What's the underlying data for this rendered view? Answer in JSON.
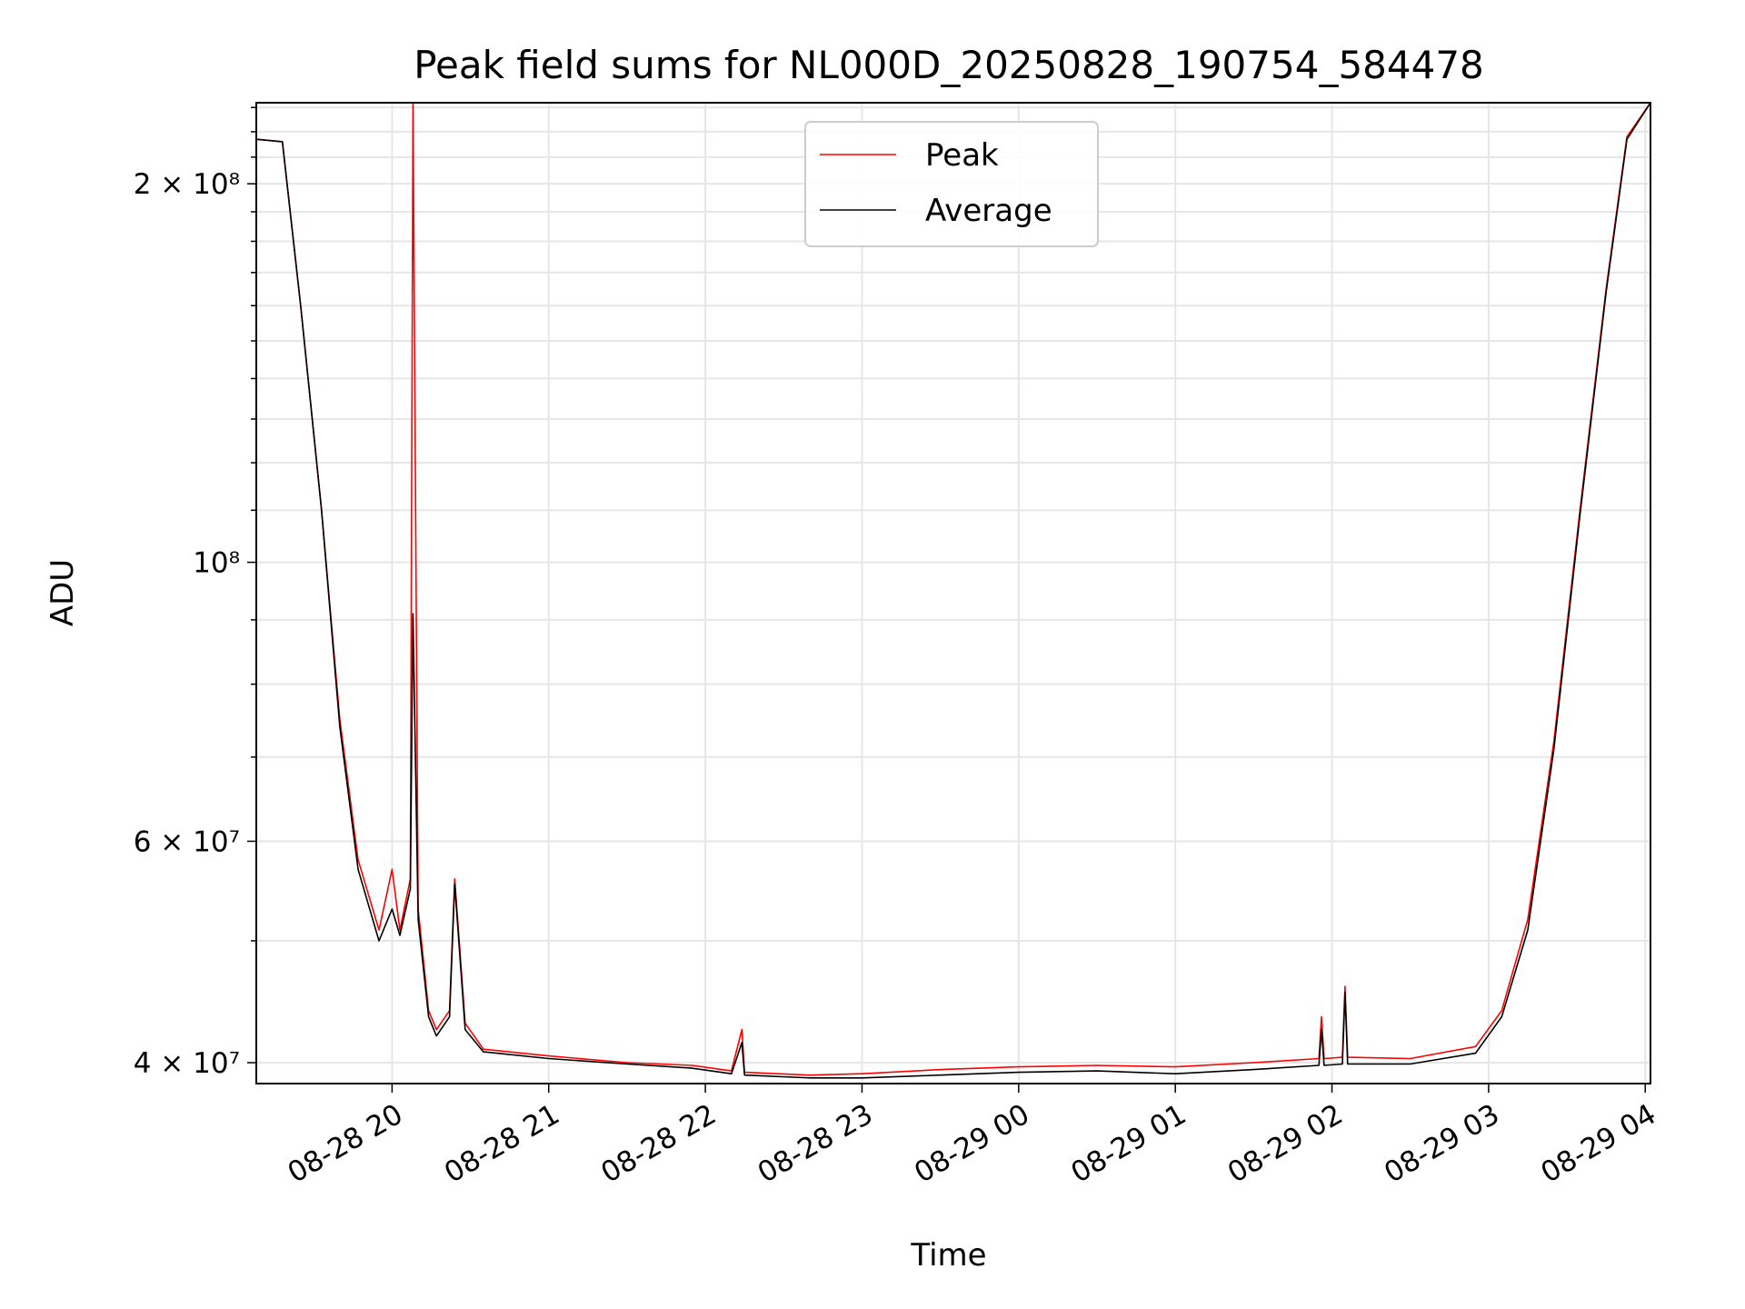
{
  "chart_data": {
    "type": "line",
    "title": "Peak field sums for NL000D_20250828_190754_584478",
    "xlabel": "Time",
    "ylabel": "ADU",
    "y_scale": "log",
    "ylim": [
      38500000,
      232000000
    ],
    "xlim": [
      "2025-08-28 19:08",
      "2025-08-29 04:02"
    ],
    "grid": true,
    "legend_position": "top-center",
    "x_ticks": [
      {
        "label": "08-28 20",
        "x": "2025-08-28 20:00"
      },
      {
        "label": "08-28 21",
        "x": "2025-08-28 21:00"
      },
      {
        "label": "08-28 22",
        "x": "2025-08-28 22:00"
      },
      {
        "label": "08-28 23",
        "x": "2025-08-28 23:00"
      },
      {
        "label": "08-29 00",
        "x": "2025-08-29 00:00"
      },
      {
        "label": "08-29 01",
        "x": "2025-08-29 01:00"
      },
      {
        "label": "08-29 02",
        "x": "2025-08-29 02:00"
      },
      {
        "label": "08-29 03",
        "x": "2025-08-29 03:00"
      },
      {
        "label": "08-29 04",
        "x": "2025-08-29 04:00"
      }
    ],
    "y_ticks": [
      {
        "label": "2 × 10⁸",
        "value": 200000000
      },
      {
        "label": "10⁸",
        "value": 100000000
      },
      {
        "label": "6 × 10⁷",
        "value": 60000000
      },
      {
        "label": "4 × 10⁷",
        "value": 40000000
      }
    ],
    "series": [
      {
        "name": "Peak",
        "color": "#ff0000",
        "points": [
          {
            "x": "2025-08-28 19:08",
            "y": 217000000
          },
          {
            "x": "2025-08-28 19:18",
            "y": 216000000
          },
          {
            "x": "2025-08-28 19:25",
            "y": 160000000
          },
          {
            "x": "2025-08-28 19:33",
            "y": 110000000
          },
          {
            "x": "2025-08-28 19:40",
            "y": 75000000
          },
          {
            "x": "2025-08-28 19:47",
            "y": 58000000
          },
          {
            "x": "2025-08-28 19:55",
            "y": 51000000
          },
          {
            "x": "2025-08-28 20:00",
            "y": 57000000
          },
          {
            "x": "2025-08-28 20:03",
            "y": 51000000
          },
          {
            "x": "2025-08-28 20:07",
            "y": 56000000
          },
          {
            "x": "2025-08-28 20:08",
            "y": 232000000
          },
          {
            "x": "2025-08-28 20:10",
            "y": 53000000
          },
          {
            "x": "2025-08-28 20:14",
            "y": 44000000
          },
          {
            "x": "2025-08-28 20:17",
            "y": 42500000
          },
          {
            "x": "2025-08-28 20:22",
            "y": 44000000
          },
          {
            "x": "2025-08-28 20:24",
            "y": 56000000
          },
          {
            "x": "2025-08-28 20:28",
            "y": 43000000
          },
          {
            "x": "2025-08-28 20:35",
            "y": 41000000
          },
          {
            "x": "2025-08-28 21:00",
            "y": 40500000
          },
          {
            "x": "2025-08-28 21:30",
            "y": 40000000
          },
          {
            "x": "2025-08-28 21:55",
            "y": 39800000
          },
          {
            "x": "2025-08-28 22:10",
            "y": 39400000
          },
          {
            "x": "2025-08-28 22:14",
            "y": 42500000
          },
          {
            "x": "2025-08-28 22:15",
            "y": 39300000
          },
          {
            "x": "2025-08-28 22:40",
            "y": 39100000
          },
          {
            "x": "2025-08-28 23:00",
            "y": 39200000
          },
          {
            "x": "2025-08-28 23:30",
            "y": 39500000
          },
          {
            "x": "2025-08-29 00:00",
            "y": 39700000
          },
          {
            "x": "2025-08-29 00:30",
            "y": 39800000
          },
          {
            "x": "2025-08-29 01:00",
            "y": 39700000
          },
          {
            "x": "2025-08-29 01:30",
            "y": 40000000
          },
          {
            "x": "2025-08-29 01:55",
            "y": 40300000
          },
          {
            "x": "2025-08-29 01:56",
            "y": 43500000
          },
          {
            "x": "2025-08-29 01:57",
            "y": 40300000
          },
          {
            "x": "2025-08-29 02:04",
            "y": 40400000
          },
          {
            "x": "2025-08-29 02:05",
            "y": 46000000
          },
          {
            "x": "2025-08-29 02:06",
            "y": 40400000
          },
          {
            "x": "2025-08-29 02:30",
            "y": 40300000
          },
          {
            "x": "2025-08-29 02:55",
            "y": 41200000
          },
          {
            "x": "2025-08-29 03:05",
            "y": 44000000
          },
          {
            "x": "2025-08-29 03:15",
            "y": 52000000
          },
          {
            "x": "2025-08-29 03:25",
            "y": 72000000
          },
          {
            "x": "2025-08-29 03:35",
            "y": 110000000
          },
          {
            "x": "2025-08-29 03:45",
            "y": 165000000
          },
          {
            "x": "2025-08-29 03:53",
            "y": 218000000
          },
          {
            "x": "2025-08-29 04:02",
            "y": 232000000
          }
        ]
      },
      {
        "name": "Average",
        "color": "#000000",
        "points": [
          {
            "x": "2025-08-28 19:08",
            "y": 217000000
          },
          {
            "x": "2025-08-28 19:18",
            "y": 216000000
          },
          {
            "x": "2025-08-28 19:25",
            "y": 160000000
          },
          {
            "x": "2025-08-28 19:33",
            "y": 110000000
          },
          {
            "x": "2025-08-28 19:40",
            "y": 74000000
          },
          {
            "x": "2025-08-28 19:47",
            "y": 57000000
          },
          {
            "x": "2025-08-28 19:55",
            "y": 50000000
          },
          {
            "x": "2025-08-28 20:00",
            "y": 53000000
          },
          {
            "x": "2025-08-28 20:03",
            "y": 50500000
          },
          {
            "x": "2025-08-28 20:07",
            "y": 55000000
          },
          {
            "x": "2025-08-28 20:08",
            "y": 91000000
          },
          {
            "x": "2025-08-28 20:10",
            "y": 52000000
          },
          {
            "x": "2025-08-28 20:14",
            "y": 43500000
          },
          {
            "x": "2025-08-28 20:17",
            "y": 42000000
          },
          {
            "x": "2025-08-28 20:22",
            "y": 43500000
          },
          {
            "x": "2025-08-28 20:24",
            "y": 55500000
          },
          {
            "x": "2025-08-28 20:28",
            "y": 42500000
          },
          {
            "x": "2025-08-28 20:35",
            "y": 40800000
          },
          {
            "x": "2025-08-28 21:00",
            "y": 40300000
          },
          {
            "x": "2025-08-28 21:30",
            "y": 39900000
          },
          {
            "x": "2025-08-28 21:55",
            "y": 39600000
          },
          {
            "x": "2025-08-28 22:10",
            "y": 39200000
          },
          {
            "x": "2025-08-28 22:14",
            "y": 41500000
          },
          {
            "x": "2025-08-28 22:15",
            "y": 39100000
          },
          {
            "x": "2025-08-28 22:40",
            "y": 38900000
          },
          {
            "x": "2025-08-28 23:00",
            "y": 38900000
          },
          {
            "x": "2025-08-28 23:30",
            "y": 39100000
          },
          {
            "x": "2025-08-29 00:00",
            "y": 39300000
          },
          {
            "x": "2025-08-29 00:30",
            "y": 39400000
          },
          {
            "x": "2025-08-29 01:00",
            "y": 39200000
          },
          {
            "x": "2025-08-29 01:30",
            "y": 39500000
          },
          {
            "x": "2025-08-29 01:55",
            "y": 39800000
          },
          {
            "x": "2025-08-29 01:56",
            "y": 42500000
          },
          {
            "x": "2025-08-29 01:57",
            "y": 39800000
          },
          {
            "x": "2025-08-29 02:04",
            "y": 39900000
          },
          {
            "x": "2025-08-29 02:05",
            "y": 45500000
          },
          {
            "x": "2025-08-29 02:06",
            "y": 39900000
          },
          {
            "x": "2025-08-29 02:30",
            "y": 39900000
          },
          {
            "x": "2025-08-29 02:55",
            "y": 40700000
          },
          {
            "x": "2025-08-29 03:05",
            "y": 43500000
          },
          {
            "x": "2025-08-29 03:15",
            "y": 51000000
          },
          {
            "x": "2025-08-29 03:25",
            "y": 71000000
          },
          {
            "x": "2025-08-29 03:35",
            "y": 109000000
          },
          {
            "x": "2025-08-29 03:45",
            "y": 164000000
          },
          {
            "x": "2025-08-29 03:53",
            "y": 217000000
          },
          {
            "x": "2025-08-29 04:02",
            "y": 232000000
          }
        ]
      }
    ]
  }
}
